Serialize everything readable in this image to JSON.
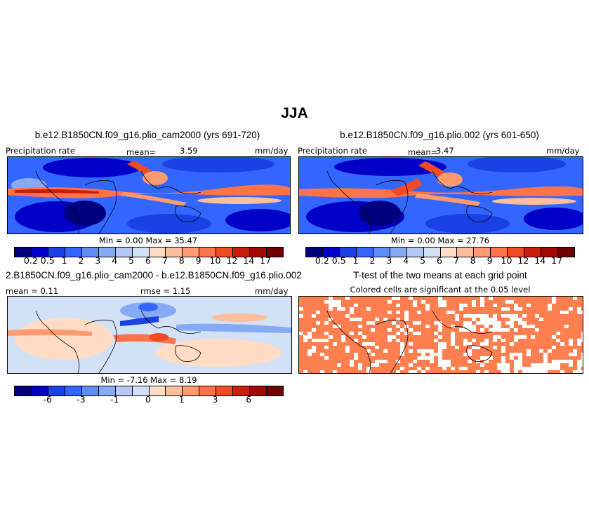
{
  "title": "JJA",
  "colors": {
    "precip_scale": [
      "#00007f",
      "#0000c8",
      "#1941e6",
      "#3366ff",
      "#5f8cf5",
      "#87aaf5",
      "#b4c8f5",
      "#d2e1f5",
      "#ffdcc3",
      "#ffbe9b",
      "#ff9b6e",
      "#ff734b",
      "#f04b23",
      "#c81e0a",
      "#a00a00",
      "#6e0000"
    ],
    "diff_scale": [
      "#00007f",
      "#0000c8",
      "#1941e6",
      "#3366ff",
      "#5f8cf5",
      "#87aaf5",
      "#b4c8f5",
      "#d2e1f5",
      "#ffdcc3",
      "#ffbe9b",
      "#ff9b6e",
      "#ff734b",
      "#f04b23",
      "#c81e0a",
      "#a00a00",
      "#6e0000"
    ],
    "significant": "#ff7f50",
    "coast": "#000000"
  },
  "panel1": {
    "title": "b.e12.B1850CN.f09_g16.plio_cam2000 (yrs 691-720)",
    "variable": "Precipitation rate",
    "mean_label": "mean=",
    "mean_value": "3.59",
    "units": "mm/day",
    "minmax": "Min =    0.00  Max =   35.47",
    "ticks": [
      "0.2",
      "0.5",
      "1",
      "2",
      "3",
      "4",
      "5",
      "6",
      "7",
      "8",
      "9",
      "10",
      "12",
      "14",
      "17"
    ]
  },
  "panel2": {
    "title": "b.e12.B1850CN.f09_g16.plio.002 (yrs 601-650)",
    "variable": "Precipitation rate",
    "mean_label": "mean=",
    "mean_value": "3.47",
    "units": "mm/day",
    "minmax": "Min =    0.00  Max =   27.76",
    "ticks": [
      "0.2",
      "0.5",
      "1",
      "2",
      "3",
      "4",
      "5",
      "6",
      "7",
      "8",
      "9",
      "10",
      "12",
      "14",
      "17"
    ]
  },
  "panel3": {
    "title": "2.B1850CN.f09_g16.plio_cam2000 - b.e12.B1850CN.f09_g16.plio.002",
    "mean_text": "mean =   0.11",
    "rmse_text": "rmse =    1.15",
    "units": "mm/day",
    "minmax": "Min =   -7.16  Max =    8.19",
    "ticks": [
      "-6",
      "-3",
      "-1",
      "0",
      "1",
      "3",
      "6"
    ]
  },
  "panel4": {
    "title": "T-test of the two means at each grid point",
    "subtitle": "Colored cells are significant at the 0.05 level"
  }
}
